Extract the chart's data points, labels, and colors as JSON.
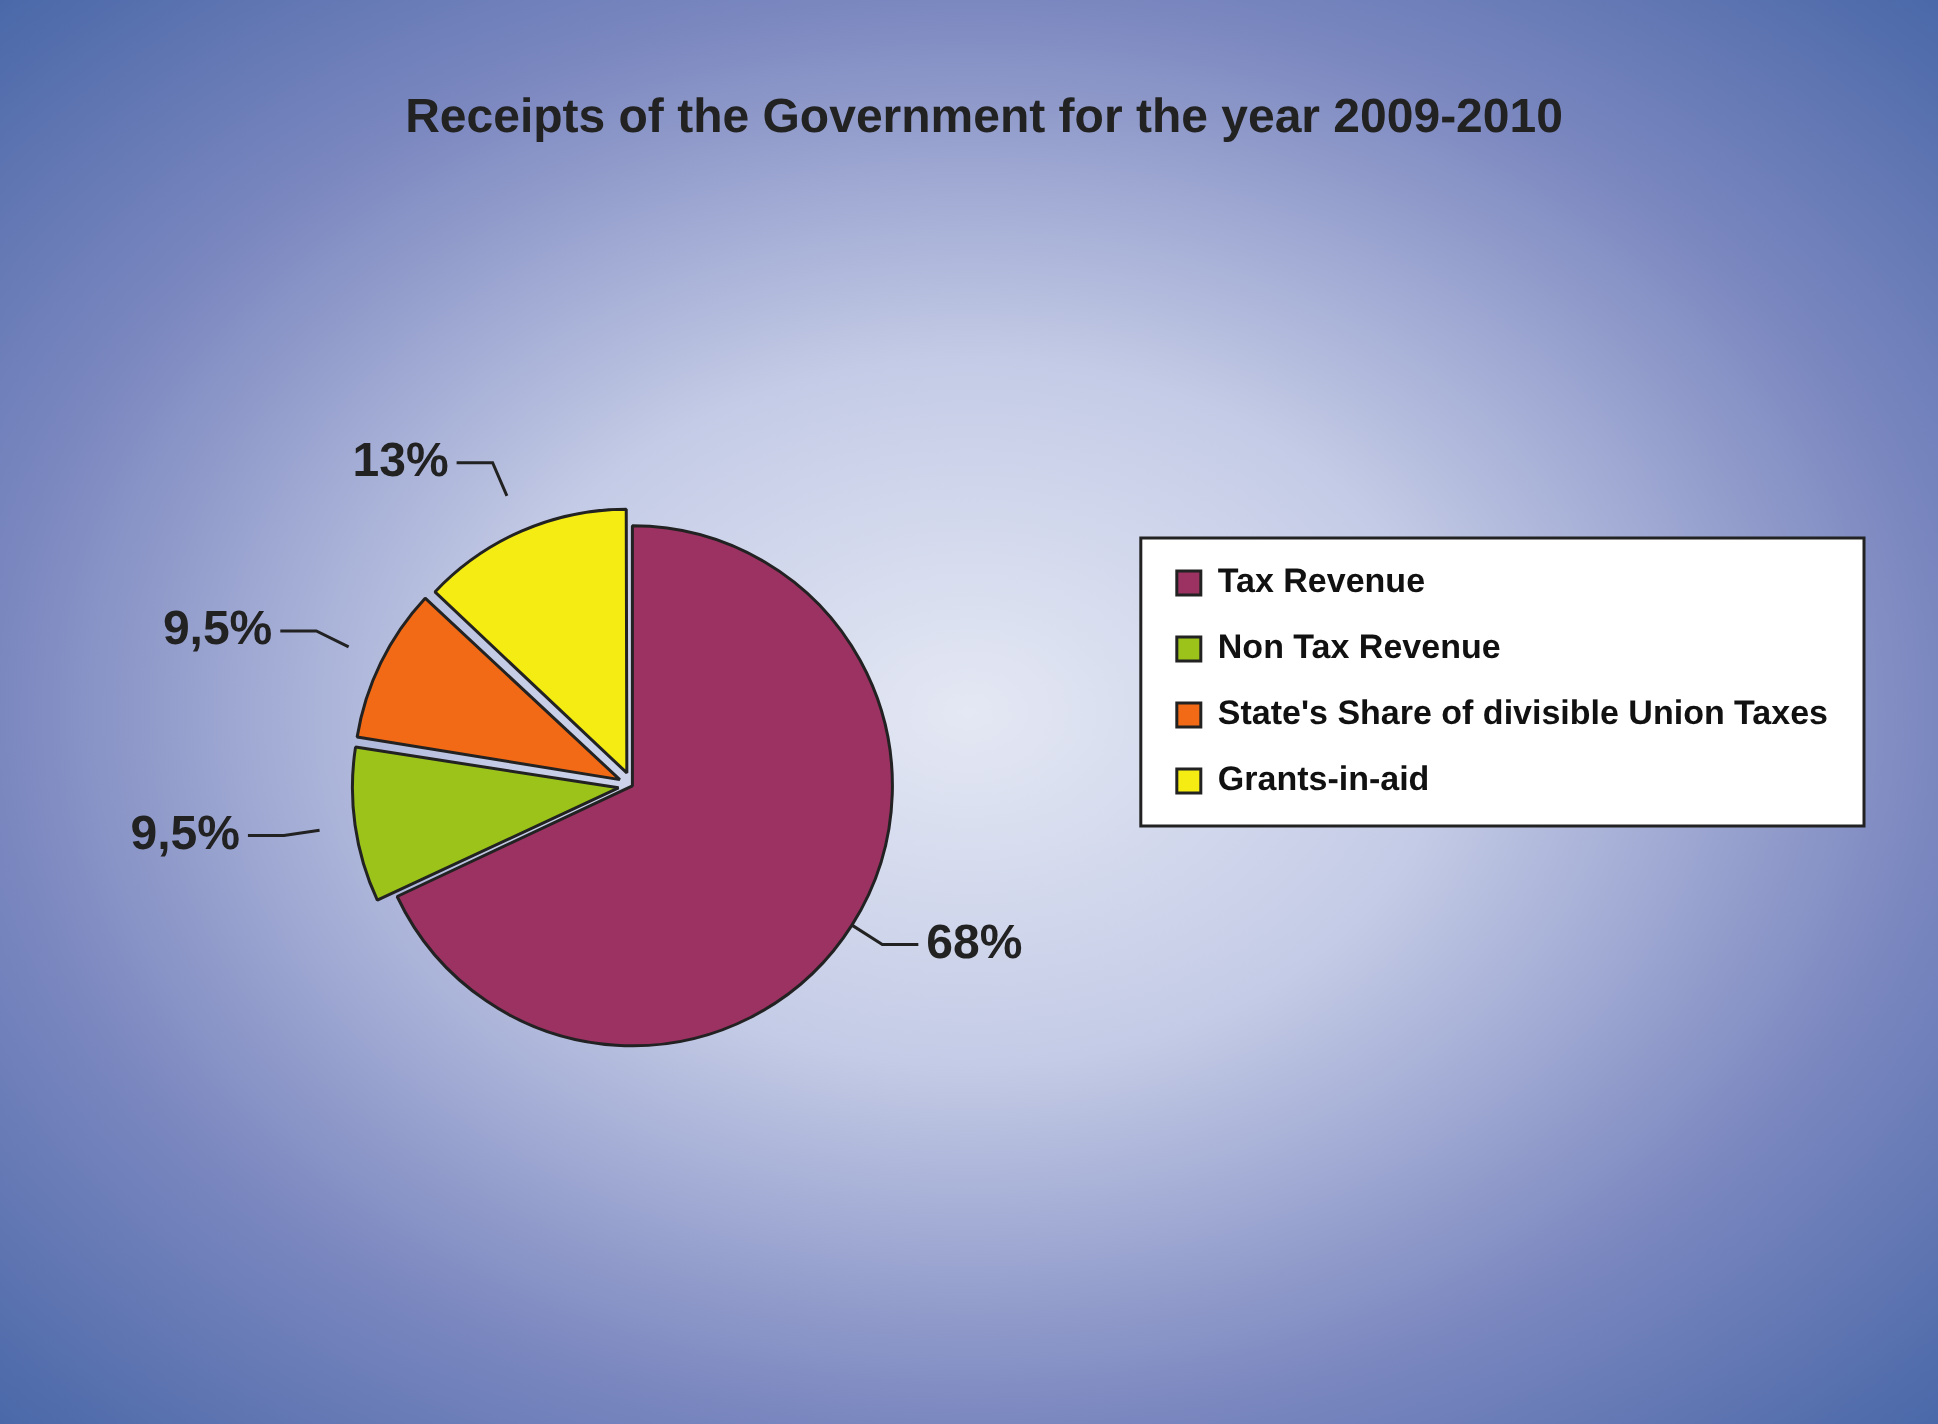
{
  "chart_data": {
    "type": "pie",
    "title": "Receipts of the Government for the year 2009-2010",
    "categories": [
      "Tax Revenue",
      "Non Tax Revenue",
      "State's Share of divisible Union Taxes",
      "Grants-in-aid"
    ],
    "values": [
      68,
      9.5,
      9.5,
      13
    ],
    "colors": [
      "#9b3262",
      "#9bc31a",
      "#f26a16",
      "#f5ec13"
    ],
    "value_labels": [
      "68%",
      "9,5%",
      "9,5%",
      "13%"
    ],
    "legend": "right"
  }
}
